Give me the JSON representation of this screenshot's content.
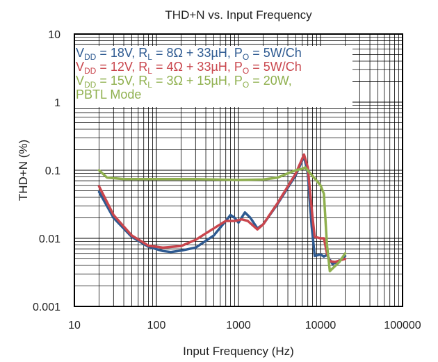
{
  "chart_data": {
    "type": "line",
    "title": "THD+N vs. Input Frequency",
    "xlabel": "Input Frequency (Hz)",
    "ylabel": "THD+N (%)",
    "xscale": "log",
    "yscale": "log",
    "xlim": [
      10,
      100000
    ],
    "ylim": [
      0.001,
      10
    ],
    "x_ticks": [
      "10",
      "100",
      "1000",
      "10000",
      "100000"
    ],
    "y_ticks": [
      "10",
      "1",
      "0.1",
      "0.01",
      "0.001"
    ],
    "grid": true,
    "legend_position": "top-left",
    "legend": [
      {
        "parts": [
          [
            "V",
            ""
          ],
          [
            "DD",
            "sub"
          ],
          [
            " = 18V, R",
            ""
          ],
          [
            "L",
            "sub"
          ],
          [
            " = 8Ω + 33µH, P",
            ""
          ],
          [
            "O",
            "sub"
          ],
          [
            " = 5W/Ch",
            ""
          ]
        ]
      },
      {
        "parts": [
          [
            "V",
            ""
          ],
          [
            "DD",
            "sub"
          ],
          [
            " = 12V, R",
            ""
          ],
          [
            "L",
            "sub"
          ],
          [
            " = 4Ω + 33µH, P",
            ""
          ],
          [
            "O",
            "sub"
          ],
          [
            " = 5W/Ch",
            ""
          ]
        ]
      },
      {
        "parts": [
          [
            "V",
            ""
          ],
          [
            "DD",
            "sub"
          ],
          [
            " = 15V, R",
            ""
          ],
          [
            "L",
            "sub"
          ],
          [
            " = 3Ω + 15µH, P",
            ""
          ],
          [
            "O",
            "sub"
          ],
          [
            " = 20W,",
            ""
          ]
        ]
      },
      {
        "parts": [
          [
            "PBTL Mode",
            ""
          ]
        ]
      }
    ],
    "series": [
      {
        "color": "#2e5a91",
        "points": [
          [
            20,
            0.048
          ],
          [
            30,
            0.02
          ],
          [
            50,
            0.0105
          ],
          [
            80,
            0.0075
          ],
          [
            120,
            0.0065
          ],
          [
            150,
            0.0063
          ],
          [
            200,
            0.0066
          ],
          [
            300,
            0.0073
          ],
          [
            500,
            0.011
          ],
          [
            700,
            0.018
          ],
          [
            800,
            0.022
          ],
          [
            900,
            0.02
          ],
          [
            1000,
            0.017
          ],
          [
            1200,
            0.024
          ],
          [
            1400,
            0.02
          ],
          [
            1700,
            0.014
          ],
          [
            2000,
            0.016
          ],
          [
            3000,
            0.032
          ],
          [
            5000,
            0.085
          ],
          [
            6300,
            0.16
          ],
          [
            7000,
            0.09
          ],
          [
            7800,
            0.015
          ],
          [
            8500,
            0.0055
          ],
          [
            10000,
            0.0058
          ],
          [
            11000,
            0.0054
          ],
          [
            12000,
            0.0057
          ],
          [
            14000,
            0.0042
          ],
          [
            16000,
            0.0045
          ],
          [
            20000,
            0.0055
          ]
        ]
      },
      {
        "color": "#c9464d",
        "points": [
          [
            20,
            0.058
          ],
          [
            30,
            0.022
          ],
          [
            50,
            0.011
          ],
          [
            80,
            0.0078
          ],
          [
            120,
            0.0073
          ],
          [
            200,
            0.0077
          ],
          [
            300,
            0.0095
          ],
          [
            500,
            0.014
          ],
          [
            700,
            0.018
          ],
          [
            900,
            0.018
          ],
          [
            1100,
            0.019
          ],
          [
            1300,
            0.018
          ],
          [
            1700,
            0.0135
          ],
          [
            2000,
            0.016
          ],
          [
            3000,
            0.033
          ],
          [
            5000,
            0.09
          ],
          [
            6300,
            0.17
          ],
          [
            7000,
            0.11
          ],
          [
            8000,
            0.02
          ],
          [
            8500,
            0.0105
          ],
          [
            10000,
            0.01
          ],
          [
            11000,
            0.01
          ],
          [
            12000,
            0.006
          ],
          [
            13000,
            0.0046
          ],
          [
            15000,
            0.0045
          ],
          [
            20000,
            0.005
          ]
        ]
      },
      {
        "color": "#8fb04e",
        "points": [
          [
            20,
            0.1
          ],
          [
            25,
            0.078
          ],
          [
            40,
            0.074
          ],
          [
            100,
            0.074
          ],
          [
            300,
            0.074
          ],
          [
            1000,
            0.072
          ],
          [
            2000,
            0.073
          ],
          [
            3000,
            0.078
          ],
          [
            4000,
            0.09
          ],
          [
            5000,
            0.1
          ],
          [
            6000,
            0.105
          ],
          [
            6500,
            0.11
          ],
          [
            7500,
            0.09
          ],
          [
            9000,
            0.07
          ],
          [
            10000,
            0.06
          ],
          [
            11000,
            0.045
          ],
          [
            12000,
            0.008
          ],
          [
            13000,
            0.0033
          ],
          [
            14000,
            0.0036
          ],
          [
            17000,
            0.0045
          ],
          [
            20000,
            0.006
          ]
        ]
      }
    ]
  }
}
